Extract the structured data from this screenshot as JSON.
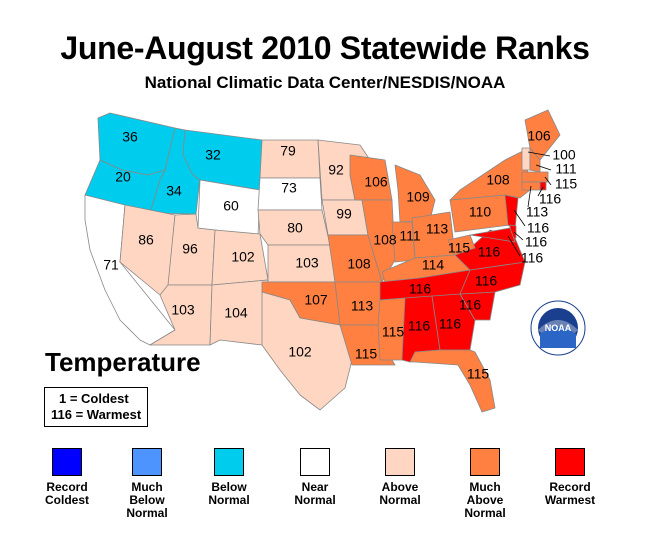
{
  "title": "June-August 2010 Statewide Ranks",
  "subtitle": "National Climatic Data Center/NESDIS/NOAA",
  "key": {
    "heading": "Temperature",
    "coldest": "1 = Coldest",
    "warmest": "116 = Warmest"
  },
  "colors": {
    "record_coldest": "#0000ff",
    "much_below": "#4d94ff",
    "below": "#00ccee",
    "near": "#ffffff",
    "above": "#ffd6c2",
    "much_above": "#ff8040",
    "record_warmest": "#ff0000"
  },
  "legend": [
    {
      "label": "Record Coldest",
      "color": "#0000ff"
    },
    {
      "label": "Much Below Normal",
      "color": "#4d94ff"
    },
    {
      "label": "Below Normal",
      "color": "#00ccee"
    },
    {
      "label": "Near Normal",
      "color": "#ffffff"
    },
    {
      "label": "Above Normal",
      "color": "#ffd6c2"
    },
    {
      "label": "Much Above Normal",
      "color": "#ff8040"
    },
    {
      "label": "Record Warmest",
      "color": "#ff0000"
    }
  ],
  "states": {
    "WA": {
      "rank": "36",
      "category": "below"
    },
    "OR": {
      "rank": "20",
      "category": "below"
    },
    "ID": {
      "rank": "34",
      "category": "below"
    },
    "MT": {
      "rank": "32",
      "category": "below"
    },
    "CA": {
      "rank": "71",
      "category": "near"
    },
    "NV": {
      "rank": "86",
      "category": "above"
    },
    "UT": {
      "rank": "96",
      "category": "above"
    },
    "AZ": {
      "rank": "103",
      "category": "above"
    },
    "WY": {
      "rank": "60",
      "category": "near"
    },
    "CO": {
      "rank": "102",
      "category": "above"
    },
    "NM": {
      "rank": "104",
      "category": "above"
    },
    "ND": {
      "rank": "79",
      "category": "above"
    },
    "SD": {
      "rank": "73",
      "category": "near"
    },
    "NE": {
      "rank": "80",
      "category": "above"
    },
    "KS": {
      "rank": "103",
      "category": "above"
    },
    "OK": {
      "rank": "107",
      "category": "much_above"
    },
    "TX": {
      "rank": "102",
      "category": "above"
    },
    "MN": {
      "rank": "92",
      "category": "above"
    },
    "IA": {
      "rank": "99",
      "category": "above"
    },
    "MO": {
      "rank": "108",
      "category": "much_above"
    },
    "AR": {
      "rank": "113",
      "category": "much_above"
    },
    "LA": {
      "rank": "115",
      "category": "much_above"
    },
    "WI": {
      "rank": "106",
      "category": "much_above"
    },
    "IL": {
      "rank": "108",
      "category": "much_above"
    },
    "MI": {
      "rank": "109",
      "category": "much_above"
    },
    "IN": {
      "rank": "111",
      "category": "much_above"
    },
    "OH": {
      "rank": "113",
      "category": "much_above"
    },
    "KY": {
      "rank": "114",
      "category": "much_above"
    },
    "TN": {
      "rank": "116",
      "category": "record_warmest"
    },
    "MS": {
      "rank": "115",
      "category": "much_above"
    },
    "AL": {
      "rank": "116",
      "category": "record_warmest"
    },
    "GA": {
      "rank": "116",
      "category": "record_warmest"
    },
    "FL": {
      "rank": "115",
      "category": "much_above"
    },
    "SC": {
      "rank": "116",
      "category": "record_warmest"
    },
    "NC": {
      "rank": "116",
      "category": "record_warmest"
    },
    "VA": {
      "rank": "116",
      "category": "record_warmest"
    },
    "WV": {
      "rank": "115",
      "category": "much_above"
    },
    "PA": {
      "rank": "110",
      "category": "much_above"
    },
    "NY": {
      "rank": "108",
      "category": "much_above"
    },
    "ME": {
      "rank": "106",
      "category": "much_above"
    },
    "VT": {
      "rank": "100",
      "category": "above"
    },
    "NH": {
      "rank": "111",
      "category": "much_above"
    },
    "MA": {
      "rank": "115",
      "category": "much_above"
    },
    "RI": {
      "rank": "116",
      "category": "record_warmest"
    },
    "CT": {
      "rank": "113",
      "category": "much_above"
    },
    "NJ": {
      "rank": "116",
      "category": "record_warmest"
    },
    "DE": {
      "rank": "116",
      "category": "record_warmest"
    },
    "MD": {
      "rank": "116",
      "category": "record_warmest"
    }
  }
}
